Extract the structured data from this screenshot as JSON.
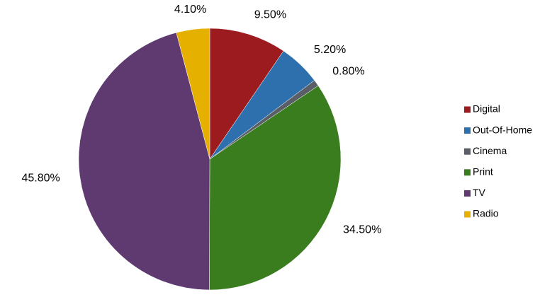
{
  "chart_data": {
    "type": "pie",
    "categories": [
      "Digital",
      "Out-Of-Home",
      "Cinema",
      "Print",
      "TV",
      "Radio"
    ],
    "values": [
      9.5,
      5.2,
      0.8,
      34.5,
      45.8,
      4.1
    ],
    "value_labels": [
      "9.50%",
      "5.20%",
      "0.80%",
      "34.50%",
      "45.80%",
      "4.10%"
    ],
    "colors": [
      "#9b1b1f",
      "#2e6fad",
      "#5a5e66",
      "#3a7d1e",
      "#5e3a70",
      "#e6b000"
    ],
    "legend": "right"
  }
}
